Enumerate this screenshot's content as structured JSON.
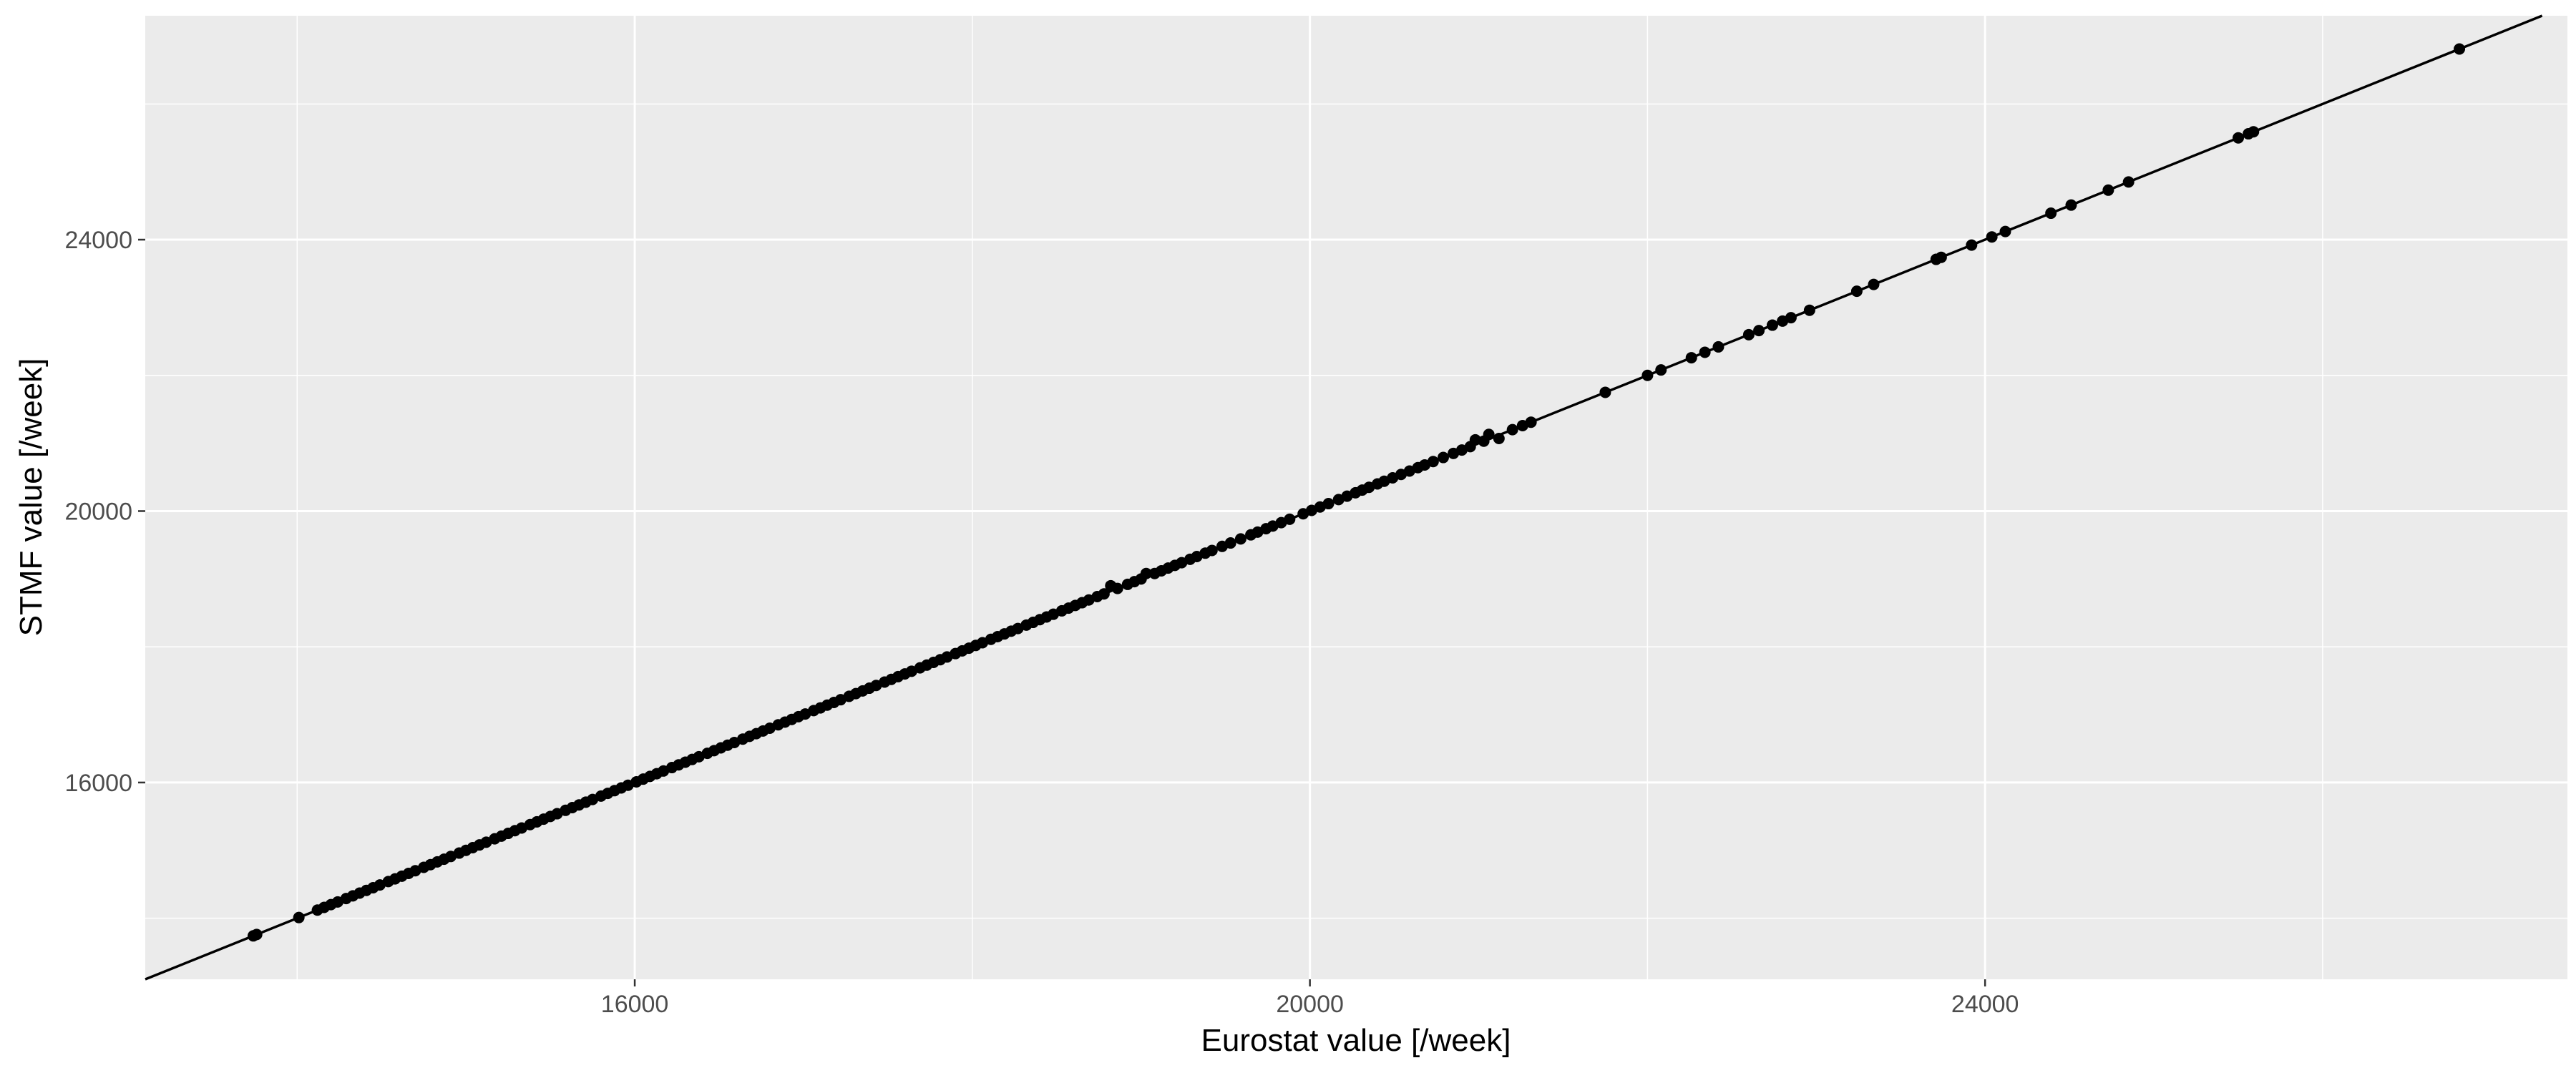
{
  "chart_data": {
    "type": "scatter",
    "title": "",
    "xlabel": "Eurostat value [/week]",
    "ylabel": "STMF value [/week]",
    "xlim": [
      13100,
      27450
    ],
    "ylim": [
      13100,
      27300
    ],
    "x_ticks": [
      16000,
      20000,
      24000
    ],
    "y_ticks": [
      16000,
      20000,
      24000
    ],
    "grid": true,
    "legend": "none",
    "reference_line": {
      "slope": 1,
      "intercept": 0,
      "label": ""
    },
    "colors": {
      "panel": "#ebebeb",
      "grid": "#ffffff",
      "points": "#000000",
      "line": "#000000",
      "tick_text": "#4d4d4d"
    },
    "series": [
      {
        "points": [
          [
            13740,
            13740
          ],
          [
            13760,
            13760
          ],
          [
            14010,
            14010
          ],
          [
            14120,
            14120
          ],
          [
            14160,
            14160
          ],
          [
            14200,
            14200
          ],
          [
            14240,
            14240
          ],
          [
            14290,
            14290
          ],
          [
            14330,
            14330
          ],
          [
            14370,
            14370
          ],
          [
            14410,
            14410
          ],
          [
            14450,
            14450
          ],
          [
            14490,
            14490
          ],
          [
            14540,
            14540
          ],
          [
            14580,
            14580
          ],
          [
            14620,
            14620
          ],
          [
            14660,
            14660
          ],
          [
            14700,
            14700
          ],
          [
            14750,
            14750
          ],
          [
            14790,
            14790
          ],
          [
            14830,
            14830
          ],
          [
            14870,
            14870
          ],
          [
            14910,
            14910
          ],
          [
            14960,
            14960
          ],
          [
            15000,
            15000
          ],
          [
            15040,
            15040
          ],
          [
            15080,
            15080
          ],
          [
            15120,
            15120
          ],
          [
            15170,
            15170
          ],
          [
            15210,
            15210
          ],
          [
            15250,
            15250
          ],
          [
            15290,
            15290
          ],
          [
            15330,
            15330
          ],
          [
            15380,
            15380
          ],
          [
            15420,
            15420
          ],
          [
            15460,
            15460
          ],
          [
            15500,
            15500
          ],
          [
            15540,
            15540
          ],
          [
            15590,
            15590
          ],
          [
            15630,
            15630
          ],
          [
            15670,
            15670
          ],
          [
            15710,
            15710
          ],
          [
            15750,
            15750
          ],
          [
            15800,
            15800
          ],
          [
            15840,
            15840
          ],
          [
            15880,
            15880
          ],
          [
            15920,
            15920
          ],
          [
            15960,
            15960
          ],
          [
            16010,
            16010
          ],
          [
            16050,
            16050
          ],
          [
            16090,
            16090
          ],
          [
            16130,
            16130
          ],
          [
            16170,
            16170
          ],
          [
            16220,
            16220
          ],
          [
            16260,
            16260
          ],
          [
            16300,
            16300
          ],
          [
            16340,
            16340
          ],
          [
            16380,
            16380
          ],
          [
            16430,
            16430
          ],
          [
            16470,
            16470
          ],
          [
            16510,
            16510
          ],
          [
            16550,
            16550
          ],
          [
            16590,
            16590
          ],
          [
            16640,
            16640
          ],
          [
            16680,
            16680
          ],
          [
            16720,
            16720
          ],
          [
            16760,
            16760
          ],
          [
            16800,
            16800
          ],
          [
            16850,
            16850
          ],
          [
            16890,
            16890
          ],
          [
            16930,
            16930
          ],
          [
            16970,
            16970
          ],
          [
            17010,
            17010
          ],
          [
            17060,
            17060
          ],
          [
            17100,
            17100
          ],
          [
            17140,
            17140
          ],
          [
            17180,
            17180
          ],
          [
            17220,
            17220
          ],
          [
            17270,
            17270
          ],
          [
            17310,
            17310
          ],
          [
            17350,
            17350
          ],
          [
            17390,
            17390
          ],
          [
            17430,
            17430
          ],
          [
            17480,
            17480
          ],
          [
            17520,
            17520
          ],
          [
            17560,
            17560
          ],
          [
            17600,
            17600
          ],
          [
            17640,
            17640
          ],
          [
            17690,
            17690
          ],
          [
            17730,
            17730
          ],
          [
            17770,
            17770
          ],
          [
            17810,
            17810
          ],
          [
            17850,
            17850
          ],
          [
            17900,
            17900
          ],
          [
            17940,
            17940
          ],
          [
            17980,
            17980
          ],
          [
            18020,
            18020
          ],
          [
            18060,
            18060
          ],
          [
            18110,
            18110
          ],
          [
            18150,
            18150
          ],
          [
            18190,
            18190
          ],
          [
            18230,
            18230
          ],
          [
            18270,
            18270
          ],
          [
            18320,
            18320
          ],
          [
            18360,
            18360
          ],
          [
            18400,
            18400
          ],
          [
            18440,
            18440
          ],
          [
            18480,
            18480
          ],
          [
            18530,
            18530
          ],
          [
            18570,
            18570
          ],
          [
            18610,
            18610
          ],
          [
            18650,
            18650
          ],
          [
            18690,
            18690
          ],
          [
            18740,
            18740
          ],
          [
            18780,
            18780
          ],
          [
            18820,
            18900
          ],
          [
            18860,
            18860
          ],
          [
            18920,
            18920
          ],
          [
            18960,
            18960
          ],
          [
            19000,
            19000
          ],
          [
            19030,
            19080
          ],
          [
            19080,
            19080
          ],
          [
            19120,
            19120
          ],
          [
            19160,
            19160
          ],
          [
            19200,
            19200
          ],
          [
            19240,
            19240
          ],
          [
            19290,
            19290
          ],
          [
            19330,
            19330
          ],
          [
            19380,
            19380
          ],
          [
            19420,
            19420
          ],
          [
            19480,
            19480
          ],
          [
            19530,
            19530
          ],
          [
            19590,
            19590
          ],
          [
            19650,
            19650
          ],
          [
            19690,
            19690
          ],
          [
            19740,
            19740
          ],
          [
            19780,
            19780
          ],
          [
            19830,
            19830
          ],
          [
            19880,
            19880
          ],
          [
            19960,
            19960
          ],
          [
            20010,
            20010
          ],
          [
            20060,
            20060
          ],
          [
            20110,
            20110
          ],
          [
            20170,
            20170
          ],
          [
            20220,
            20220
          ],
          [
            20270,
            20270
          ],
          [
            20310,
            20310
          ],
          [
            20350,
            20350
          ],
          [
            20400,
            20400
          ],
          [
            20440,
            20440
          ],
          [
            20490,
            20490
          ],
          [
            20540,
            20540
          ],
          [
            20590,
            20590
          ],
          [
            20640,
            20640
          ],
          [
            20680,
            20680
          ],
          [
            20730,
            20730
          ],
          [
            20790,
            20790
          ],
          [
            20850,
            20850
          ],
          [
            20900,
            20900
          ],
          [
            20950,
            20950
          ],
          [
            20980,
            21050
          ],
          [
            21030,
            21030
          ],
          [
            21060,
            21130
          ],
          [
            21120,
            21070
          ],
          [
            21200,
            21200
          ],
          [
            21260,
            21260
          ],
          [
            21310,
            21310
          ],
          [
            21750,
            21750
          ],
          [
            22000,
            22000
          ],
          [
            22080,
            22080
          ],
          [
            22260,
            22260
          ],
          [
            22340,
            22340
          ],
          [
            22420,
            22420
          ],
          [
            22600,
            22600
          ],
          [
            22660,
            22660
          ],
          [
            22740,
            22740
          ],
          [
            22800,
            22800
          ],
          [
            22850,
            22850
          ],
          [
            22960,
            22960
          ],
          [
            23240,
            23240
          ],
          [
            23340,
            23340
          ],
          [
            23710,
            23710
          ],
          [
            23740,
            23740
          ],
          [
            23920,
            23920
          ],
          [
            24040,
            24040
          ],
          [
            24120,
            24120
          ],
          [
            24390,
            24390
          ],
          [
            24510,
            24510
          ],
          [
            24730,
            24730
          ],
          [
            24850,
            24850
          ],
          [
            25500,
            25500
          ],
          [
            25560,
            25560
          ],
          [
            25590,
            25590
          ],
          [
            26810,
            26810
          ]
        ]
      }
    ]
  }
}
